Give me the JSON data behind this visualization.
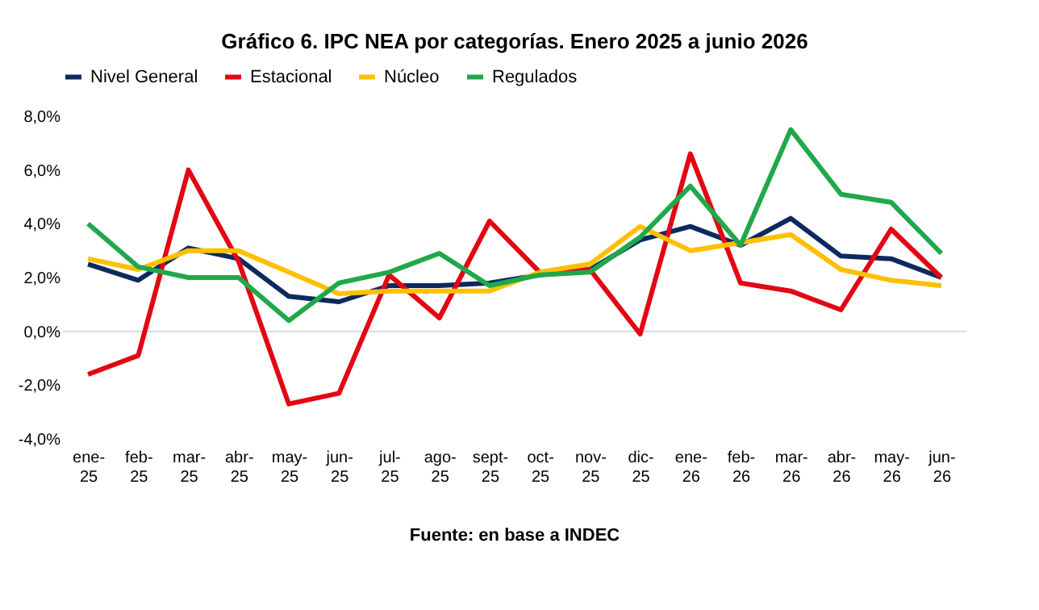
{
  "chart_data": {
    "type": "line",
    "title": "Gráfico 6. IPC NEA por categorías. Enero 2025 a junio 2026",
    "categories": [
      "ene-25",
      "feb-25",
      "mar-25",
      "abr-25",
      "may-25",
      "jun-25",
      "jul-25",
      "ago-25",
      "sept-25",
      "oct-25",
      "nov-25",
      "dic-25",
      "ene-26",
      "feb-26",
      "mar-26",
      "abr-26",
      "may-26",
      "jun-26"
    ],
    "series": [
      {
        "name": "Nivel General",
        "color": "#0d2a5e",
        "values": [
          2.5,
          1.9,
          3.1,
          2.7,
          1.3,
          1.1,
          1.7,
          1.7,
          1.8,
          2.1,
          2.3,
          3.4,
          3.9,
          3.2,
          4.2,
          2.8,
          2.7,
          2.0
        ]
      },
      {
        "name": "Estacional",
        "color": "#e30613",
        "values": [
          -1.6,
          -0.9,
          6.0,
          2.6,
          -2.7,
          -2.3,
          2.1,
          0.5,
          4.1,
          2.2,
          2.3,
          -0.1,
          6.6,
          1.8,
          1.5,
          0.8,
          3.8,
          2.0
        ]
      },
      {
        "name": "Núcleo",
        "color": "#ffc000",
        "values": [
          2.7,
          2.3,
          3.0,
          3.0,
          2.2,
          1.4,
          1.5,
          1.5,
          1.5,
          2.2,
          2.5,
          3.9,
          3.0,
          3.3,
          3.6,
          2.3,
          1.9,
          1.7
        ]
      },
      {
        "name": "Regulados",
        "color": "#20a84a",
        "values": [
          4.0,
          2.4,
          2.0,
          2.0,
          0.4,
          1.8,
          2.2,
          2.9,
          1.7,
          2.1,
          2.2,
          3.5,
          5.4,
          3.2,
          7.5,
          5.1,
          4.8,
          2.9
        ]
      }
    ],
    "ylim": [
      -4,
      8
    ],
    "yticks": [
      {
        "value": -4,
        "label": "-4,0%"
      },
      {
        "value": -2,
        "label": "-2,0%"
      },
      {
        "value": 0,
        "label": "0,0%"
      },
      {
        "value": 2,
        "label": "2,0%"
      },
      {
        "value": 4,
        "label": "4,0%"
      },
      {
        "value": 6,
        "label": "6,0%"
      },
      {
        "value": 8,
        "label": "8,0%"
      }
    ],
    "ref_lines": [
      {
        "axis": "y",
        "value": 0,
        "color": "#d9d9d9"
      }
    ],
    "grid": false,
    "legend": "top",
    "marker": "none",
    "line_style": "solid",
    "annotations": [
      "Fuente: en base a INDEC"
    ]
  }
}
